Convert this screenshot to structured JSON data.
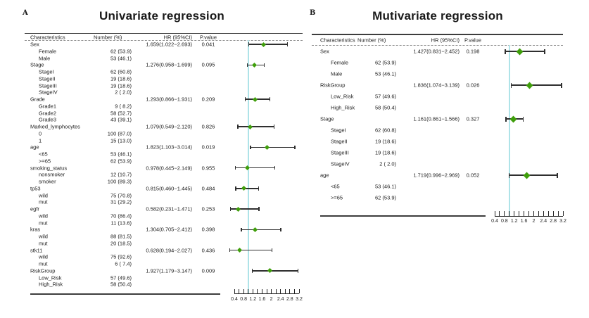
{
  "figure": {
    "background": "#ffffff",
    "marker_color": "#3f9e0b",
    "ci_color": "#2f2f2f",
    "refline_color": "#aee3e8",
    "rule_color": "#3d3d3d",
    "dash_color": "#909090",
    "axis": {
      "min": 0.4,
      "max": 3.2,
      "step": 0.2,
      "ref_value": 1,
      "tick_labels": [
        {
          "text": "0.4",
          "value": 0.4
        },
        {
          "text": "0.8",
          "value": 0.8
        },
        {
          "text": "1.2",
          "value": 1.2
        },
        {
          "text": "1.6",
          "value": 1.6
        },
        {
          "text": "2",
          "value": 2
        },
        {
          "text": "2.4",
          "value": 2.4
        },
        {
          "text": "2.8",
          "value": 2.8
        },
        {
          "text": "3.2",
          "value": 3.2
        }
      ]
    }
  },
  "panels": [
    {
      "label": "A",
      "title": "Univariate regression",
      "columns": [
        "Characteristics",
        "Number (%)",
        "HR (95%CI)",
        "P.value"
      ],
      "rows": [
        {
          "name": "Sex",
          "indent": false,
          "number": "",
          "hr": "1.659(1.022−2.693)",
          "p": "0.041",
          "est": 1.659,
          "lo": 1.022,
          "hi": 2.693
        },
        {
          "name": "Female",
          "indent": true,
          "number": "62 (53.9)",
          "hr": "",
          "p": ""
        },
        {
          "name": "Male",
          "indent": true,
          "number": "53 (46.1)",
          "hr": "",
          "p": ""
        },
        {
          "name": "Stage",
          "indent": false,
          "number": "",
          "hr": "1.276(0.958−1.699)",
          "p": "0.095",
          "est": 1.276,
          "lo": 0.958,
          "hi": 1.699
        },
        {
          "name": "StageI",
          "indent": true,
          "number": "62 (60.8)",
          "hr": "",
          "p": ""
        },
        {
          "name": "StageII",
          "indent": true,
          "number": "19 (18.6)",
          "hr": "",
          "p": ""
        },
        {
          "name": "StageIII",
          "indent": true,
          "number": "19 (18.6)",
          "hr": "",
          "p": ""
        },
        {
          "name": "StageIV",
          "indent": true,
          "number": "2 ( 2.0)",
          "hr": "",
          "p": ""
        },
        {
          "name": "Grade",
          "indent": false,
          "number": "",
          "hr": "1.293(0.866−1.931)",
          "p": "0.209",
          "est": 1.293,
          "lo": 0.866,
          "hi": 1.931
        },
        {
          "name": "Grade1",
          "indent": true,
          "number": "9 ( 8.2)",
          "hr": "",
          "p": ""
        },
        {
          "name": "Grade2",
          "indent": true,
          "number": "58 (52.7)",
          "hr": "",
          "p": ""
        },
        {
          "name": "Grade3",
          "indent": true,
          "number": "43 (39.1)",
          "hr": "",
          "p": ""
        },
        {
          "name": "Marked_lymphocytes",
          "indent": false,
          "number": "",
          "hr": "1.079(0.549−2.120)",
          "p": "0.826",
          "est": 1.079,
          "lo": 0.549,
          "hi": 2.12
        },
        {
          "name": "0",
          "indent": true,
          "number": "100 (87.0)",
          "hr": "",
          "p": ""
        },
        {
          "name": "1",
          "indent": true,
          "number": "15 (13.0)",
          "hr": "",
          "p": ""
        },
        {
          "name": "age",
          "indent": false,
          "number": "",
          "hr": "1.823(1.103−3.014)",
          "p": "0.019",
          "est": 1.823,
          "lo": 1.103,
          "hi": 3.014
        },
        {
          "name": "<65",
          "indent": true,
          "number": "53 (46.1)",
          "hr": "",
          "p": ""
        },
        {
          "name": ">=65",
          "indent": true,
          "number": "62 (53.9)",
          "hr": "",
          "p": ""
        },
        {
          "name": "smoking_status",
          "indent": false,
          "number": "",
          "hr": "0.978(0.445−2.149)",
          "p": "0.955",
          "est": 0.978,
          "lo": 0.445,
          "hi": 2.149
        },
        {
          "name": "nonsmoker",
          "indent": true,
          "number": "12 (10.7)",
          "hr": "",
          "p": ""
        },
        {
          "name": "smoker",
          "indent": true,
          "number": "100 (89.3)",
          "hr": "",
          "p": ""
        },
        {
          "name": "tp53",
          "indent": false,
          "number": "",
          "hr": "0.815(0.460−1.445)",
          "p": "0.484",
          "est": 0.815,
          "lo": 0.46,
          "hi": 1.445
        },
        {
          "name": "wild",
          "indent": true,
          "number": "75 (70.8)",
          "hr": "",
          "p": ""
        },
        {
          "name": "mut",
          "indent": true,
          "number": "31 (29.2)",
          "hr": "",
          "p": ""
        },
        {
          "name": "egfr",
          "indent": false,
          "number": "",
          "hr": "0.582(0.231−1.471)",
          "p": "0.253",
          "est": 0.582,
          "lo": 0.231,
          "hi": 1.471
        },
        {
          "name": "wild",
          "indent": true,
          "number": "70 (86.4)",
          "hr": "",
          "p": ""
        },
        {
          "name": "mut",
          "indent": true,
          "number": "11 (13.6)",
          "hr": "",
          "p": ""
        },
        {
          "name": "kras",
          "indent": false,
          "number": "",
          "hr": "1.304(0.705−2.412)",
          "p": "0.398",
          "est": 1.304,
          "lo": 0.705,
          "hi": 2.412
        },
        {
          "name": "wild",
          "indent": true,
          "number": "88 (81.5)",
          "hr": "",
          "p": ""
        },
        {
          "name": "mut",
          "indent": true,
          "number": "20 (18.5)",
          "hr": "",
          "p": ""
        },
        {
          "name": "stk11",
          "indent": false,
          "number": "",
          "hr": "0.628(0.194−2.027)",
          "p": "0.436",
          "est": 0.628,
          "lo": 0.194,
          "hi": 2.027
        },
        {
          "name": "wild",
          "indent": true,
          "number": "75 (92.6)",
          "hr": "",
          "p": ""
        },
        {
          "name": "mut",
          "indent": true,
          "number": "6 ( 7.4)",
          "hr": "",
          "p": ""
        },
        {
          "name": "RiskGroup",
          "indent": false,
          "number": "",
          "hr": "1.927(1.179−3.147)",
          "p": "0.009",
          "est": 1.927,
          "lo": 1.179,
          "hi": 3.147
        },
        {
          "name": "Low_Risk",
          "indent": true,
          "number": "57 (49.6)",
          "hr": "",
          "p": ""
        },
        {
          "name": "High_Risk",
          "indent": true,
          "number": "58 (50.4)",
          "hr": "",
          "p": ""
        }
      ]
    },
    {
      "label": "B",
      "title": "Mutivariate regression",
      "columns": [
        "Characteristics",
        "Number (%)",
        "HR (95%CI)",
        "P.value"
      ],
      "rows": [
        {
          "name": "Sex",
          "indent": false,
          "number": "",
          "hr": "1.427(0.831−2.452)",
          "p": "0.198",
          "est": 1.427,
          "lo": 0.831,
          "hi": 2.452
        },
        {
          "name": "Female",
          "indent": true,
          "number": "62 (53.9)",
          "hr": "",
          "p": ""
        },
        {
          "name": "Male",
          "indent": true,
          "number": "53 (46.1)",
          "hr": "",
          "p": ""
        },
        {
          "name": "RiskGroup",
          "indent": false,
          "number": "",
          "hr": "1.836(1.074−3.139)",
          "p": "0.026",
          "est": 1.836,
          "lo": 1.074,
          "hi": 3.139
        },
        {
          "name": "Low_Risk",
          "indent": true,
          "number": "57 (49.6)",
          "hr": "",
          "p": ""
        },
        {
          "name": "High_Risk",
          "indent": true,
          "number": "58 (50.4)",
          "hr": "",
          "p": ""
        },
        {
          "name": "Stage",
          "indent": false,
          "number": "",
          "hr": "1.161(0.861−1.566)",
          "p": "0.327",
          "est": 1.161,
          "lo": 0.861,
          "hi": 1.566
        },
        {
          "name": "StageI",
          "indent": true,
          "number": "62 (60.8)",
          "hr": "",
          "p": ""
        },
        {
          "name": "StageII",
          "indent": true,
          "number": "19 (18.6)",
          "hr": "",
          "p": ""
        },
        {
          "name": "StageIII",
          "indent": true,
          "number": "19 (18.6)",
          "hr": "",
          "p": ""
        },
        {
          "name": "StageIV",
          "indent": true,
          "number": "2 ( 2.0)",
          "hr": "",
          "p": ""
        },
        {
          "name": "age",
          "indent": false,
          "number": "",
          "hr": "1.719(0.996−2.969)",
          "p": "0.052",
          "est": 1.719,
          "lo": 0.996,
          "hi": 2.969
        },
        {
          "name": "<65",
          "indent": true,
          "number": "53 (46.1)",
          "hr": "",
          "p": ""
        },
        {
          "name": ">=65",
          "indent": true,
          "number": "62 (53.9)",
          "hr": "",
          "p": ""
        }
      ]
    }
  ],
  "chart_data": [
    {
      "type": "scatter",
      "subtype": "forest_plot",
      "title": "Univariate regression",
      "xlabel": "HR (95%CI)",
      "xlim": [
        0.4,
        3.2
      ],
      "x_ticks": [
        0.4,
        0.8,
        1.2,
        1.6,
        2,
        2.4,
        2.8,
        3.2
      ],
      "minor_tick_step": 0.2,
      "reference_line": 1,
      "grid": false,
      "points": [
        {
          "label": "Sex",
          "hr": 1.659,
          "ci_low": 1.022,
          "ci_high": 2.693,
          "p_value": 0.041
        },
        {
          "label": "Stage",
          "hr": 1.276,
          "ci_low": 0.958,
          "ci_high": 1.699,
          "p_value": 0.095
        },
        {
          "label": "Grade",
          "hr": 1.293,
          "ci_low": 0.866,
          "ci_high": 1.931,
          "p_value": 0.209
        },
        {
          "label": "Marked_lymphocytes",
          "hr": 1.079,
          "ci_low": 0.549,
          "ci_high": 2.12,
          "p_value": 0.826
        },
        {
          "label": "age",
          "hr": 1.823,
          "ci_low": 1.103,
          "ci_high": 3.014,
          "p_value": 0.019
        },
        {
          "label": "smoking_status",
          "hr": 0.978,
          "ci_low": 0.445,
          "ci_high": 2.149,
          "p_value": 0.955
        },
        {
          "label": "tp53",
          "hr": 0.815,
          "ci_low": 0.46,
          "ci_high": 1.445,
          "p_value": 0.484
        },
        {
          "label": "egfr",
          "hr": 0.582,
          "ci_low": 0.231,
          "ci_high": 1.471,
          "p_value": 0.253
        },
        {
          "label": "kras",
          "hr": 1.304,
          "ci_low": 0.705,
          "ci_high": 2.412,
          "p_value": 0.398
        },
        {
          "label": "stk11",
          "hr": 0.628,
          "ci_low": 0.194,
          "ci_high": 2.027,
          "p_value": 0.436
        },
        {
          "label": "RiskGroup",
          "hr": 1.927,
          "ci_low": 1.179,
          "ci_high": 3.147,
          "p_value": 0.009
        }
      ]
    },
    {
      "type": "scatter",
      "subtype": "forest_plot",
      "title": "Mutivariate regression",
      "xlabel": "HR (95%CI)",
      "xlim": [
        0.4,
        3.2
      ],
      "x_ticks": [
        0.4,
        0.8,
        1.2,
        1.6,
        2,
        2.4,
        2.8,
        3.2
      ],
      "minor_tick_step": 0.2,
      "reference_line": 1,
      "grid": false,
      "points": [
        {
          "label": "Sex",
          "hr": 1.427,
          "ci_low": 0.831,
          "ci_high": 2.452,
          "p_value": 0.198
        },
        {
          "label": "RiskGroup",
          "hr": 1.836,
          "ci_low": 1.074,
          "ci_high": 3.139,
          "p_value": 0.026
        },
        {
          "label": "Stage",
          "hr": 1.161,
          "ci_low": 0.861,
          "ci_high": 1.566,
          "p_value": 0.327
        },
        {
          "label": "age",
          "hr": 1.719,
          "ci_low": 0.996,
          "ci_high": 2.969,
          "p_value": 0.052
        }
      ]
    }
  ]
}
